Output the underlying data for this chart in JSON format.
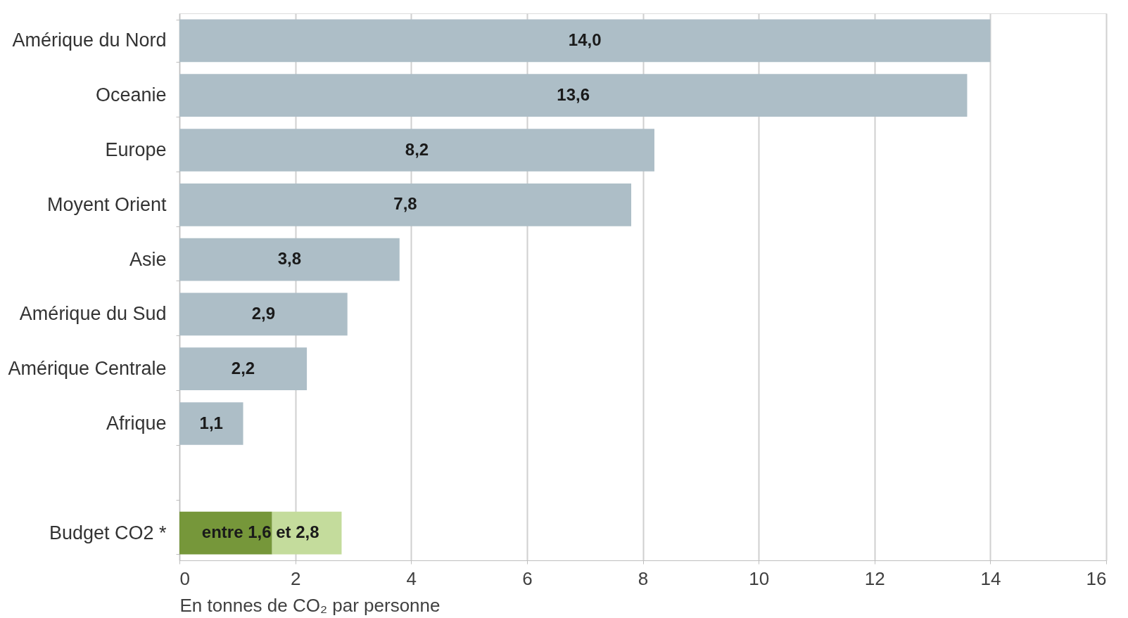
{
  "chart_data": {
    "type": "bar",
    "orientation": "horizontal",
    "stacked": true,
    "categories": [
      "Amérique du Nord",
      "Oceanie",
      "Europe",
      "Moyent Orient",
      "Asie",
      "Amérique du Sud",
      "Amérique Centrale",
      "Afrique",
      null,
      "Budget CO2 *"
    ],
    "series": [
      {
        "color": "#adbec7",
        "values": [
          14.0,
          13.6,
          8.2,
          7.8,
          3.8,
          2.9,
          2.2,
          1.1,
          null,
          null
        ],
        "value_labels": [
          "14,0",
          "13,6",
          "8,2",
          "7,8",
          "3,8",
          "2,9",
          "2,2",
          "1,1",
          null,
          null
        ]
      },
      {
        "color": "#76973a",
        "values": [
          null,
          null,
          null,
          null,
          null,
          null,
          null,
          null,
          null,
          1.6
        ]
      },
      {
        "color": "#c4dc9c",
        "values": [
          null,
          null,
          null,
          null,
          null,
          null,
          null,
          null,
          null,
          1.2
        ]
      }
    ],
    "annotations": [
      {
        "text": "entre 1,6 et 2,8",
        "x": 1.4,
        "y": "Budget CO2 *"
      }
    ],
    "xlabel": "En tonnes de CO₂ par personne",
    "xlim": [
      0,
      16
    ],
    "xticks": [
      0,
      2,
      4,
      6,
      8,
      10,
      12,
      14,
      16
    ],
    "grid": "x"
  }
}
